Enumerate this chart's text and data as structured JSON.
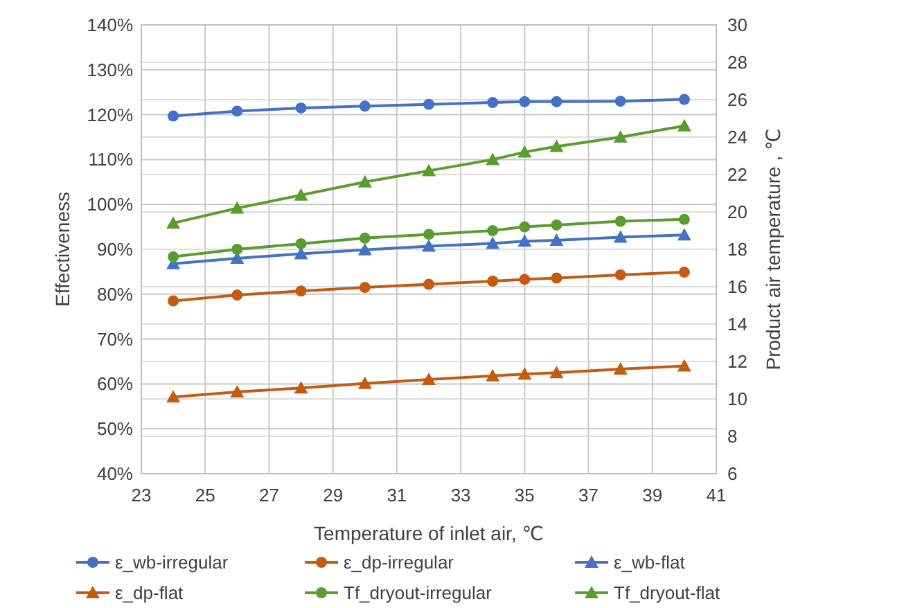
{
  "chart_data": {
    "type": "line",
    "xlabel": "Temperature of inlet air, ℃",
    "ylabel": "Effectiveness",
    "y2label": "Product air temperature , ℃",
    "x": [
      24,
      26,
      28,
      30,
      32,
      34,
      35,
      36,
      38,
      40
    ],
    "xlim": [
      23,
      41
    ],
    "xticks": [
      23,
      25,
      27,
      29,
      31,
      33,
      35,
      37,
      39,
      41
    ],
    "ylim": [
      40,
      140
    ],
    "yticks": [
      {
        "value": 40,
        "label": "40%"
      },
      {
        "value": 50,
        "label": "50%"
      },
      {
        "value": 60,
        "label": "60%"
      },
      {
        "value": 70,
        "label": "70%"
      },
      {
        "value": 80,
        "label": "80%"
      },
      {
        "value": 90,
        "label": "90%"
      },
      {
        "value": 100,
        "label": "100%"
      },
      {
        "value": 110,
        "label": "110%"
      },
      {
        "value": 120,
        "label": "120%"
      },
      {
        "value": 130,
        "label": "130%"
      },
      {
        "value": 140,
        "label": "140%"
      }
    ],
    "y2lim": [
      6,
      30
    ],
    "y2ticks": [
      6,
      8,
      10,
      12,
      14,
      16,
      18,
      20,
      22,
      24,
      26,
      28,
      30
    ],
    "grid": true,
    "legend": "bottom",
    "line_style": "solid",
    "series": [
      {
        "name": "ε_wb-irregular",
        "color": "#4472c4",
        "marker": "circle",
        "values": [
          119.7,
          120.8,
          121.5,
          121.9,
          122.3,
          122.7,
          122.9,
          122.9,
          123.0,
          123.4
        ]
      },
      {
        "name": "ε_dp-irregular",
        "color": "#c55a11",
        "marker": "circle",
        "values": [
          78.5,
          79.8,
          80.7,
          81.5,
          82.2,
          82.9,
          83.3,
          83.6,
          84.3,
          84.9
        ]
      },
      {
        "name": "ε_wb-flat",
        "color": "#4472c4",
        "marker": "triangle",
        "values": [
          86.8,
          88.0,
          89.0,
          89.9,
          90.7,
          91.3,
          91.8,
          92.0,
          92.7,
          93.2
        ]
      },
      {
        "name": "ε_dp-flat",
        "color": "#c55a11",
        "marker": "triangle",
        "values": [
          57.1,
          58.2,
          59.1,
          60.1,
          61.0,
          61.8,
          62.2,
          62.5,
          63.3,
          64.0
        ]
      },
      {
        "name": "Tf_dryout-irregular",
        "color": "#5b9c2f",
        "marker": "circle",
        "axis": "y2",
        "values": [
          17.6,
          18.0,
          18.3,
          18.6,
          18.8,
          19.0,
          19.2,
          19.3,
          19.5,
          19.6
        ]
      },
      {
        "name": "Tf_dryout-flat",
        "color": "#5b9c2f",
        "marker": "triangle",
        "axis": "y2",
        "values": [
          19.4,
          20.2,
          20.9,
          21.6,
          22.2,
          22.8,
          23.2,
          23.5,
          24.0,
          24.6
        ]
      }
    ]
  }
}
